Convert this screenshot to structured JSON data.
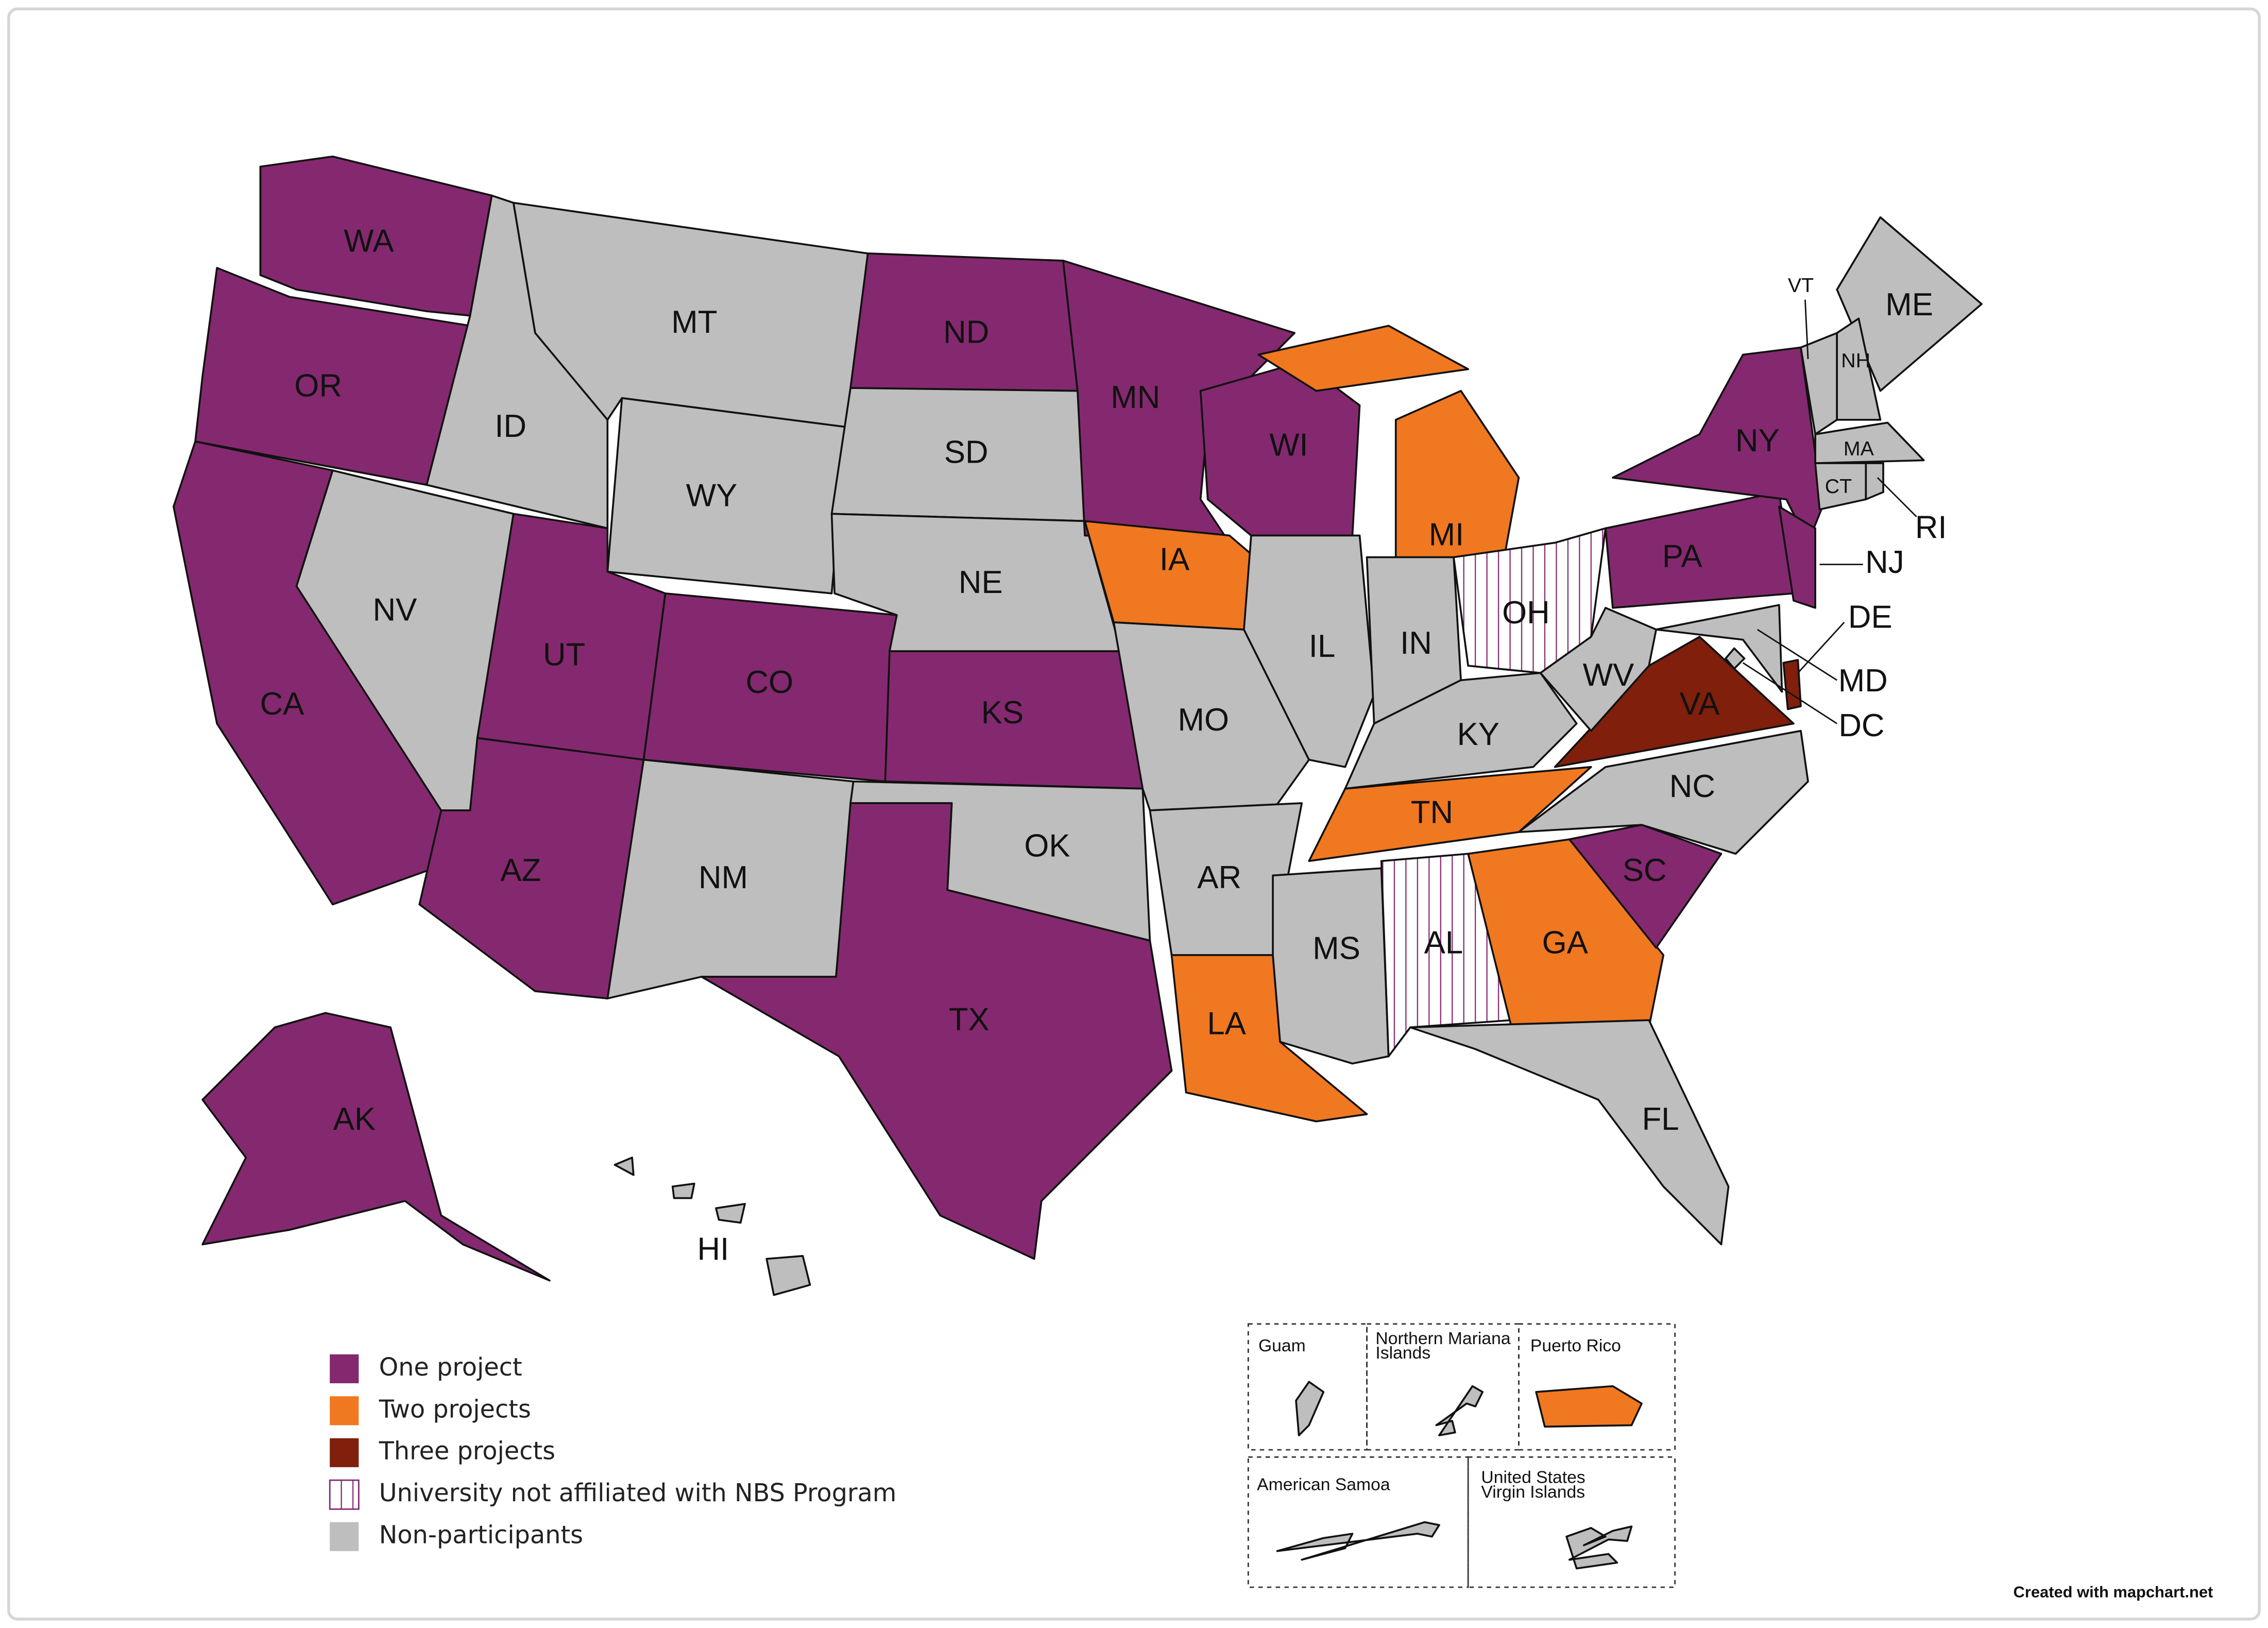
{
  "legend": [
    {
      "label": "One project",
      "color": "#84296f"
    },
    {
      "label": "Two projects",
      "color": "#f07820"
    },
    {
      "label": "Three projects",
      "color": "#7f1f0c"
    },
    {
      "label": "University not affiliated with NBS Program",
      "color": "#ffffff",
      "pattern": "stripes",
      "stripe_color": "#84296f"
    },
    {
      "label": "Non-participants",
      "color": "#bebebe"
    }
  ],
  "states": [
    {
      "code": "WA",
      "category": 0
    },
    {
      "code": "OR",
      "category": 0
    },
    {
      "code": "CA",
      "category": 0
    },
    {
      "code": "NV",
      "category": 4
    },
    {
      "code": "ID",
      "category": 4
    },
    {
      "code": "MT",
      "category": 4
    },
    {
      "code": "WY",
      "category": 4
    },
    {
      "code": "UT",
      "category": 0
    },
    {
      "code": "CO",
      "category": 0
    },
    {
      "code": "AZ",
      "category": 0
    },
    {
      "code": "NM",
      "category": 4
    },
    {
      "code": "ND",
      "category": 0
    },
    {
      "code": "SD",
      "category": 4
    },
    {
      "code": "NE",
      "category": 4
    },
    {
      "code": "KS",
      "category": 0
    },
    {
      "code": "OK",
      "category": 4
    },
    {
      "code": "TX",
      "category": 0
    },
    {
      "code": "MN",
      "category": 0
    },
    {
      "code": "IA",
      "category": 1
    },
    {
      "code": "MO",
      "category": 4
    },
    {
      "code": "AR",
      "category": 4
    },
    {
      "code": "LA",
      "category": 1
    },
    {
      "code": "WI",
      "category": 0
    },
    {
      "code": "IL",
      "category": 4
    },
    {
      "code": "MI",
      "category": 1
    },
    {
      "code": "IN",
      "category": 4
    },
    {
      "code": "OH",
      "category": 3
    },
    {
      "code": "KY",
      "category": 4
    },
    {
      "code": "TN",
      "category": 1
    },
    {
      "code": "MS",
      "category": 4
    },
    {
      "code": "AL",
      "category": 3
    },
    {
      "code": "GA",
      "category": 1
    },
    {
      "code": "FL",
      "category": 4
    },
    {
      "code": "SC",
      "category": 0
    },
    {
      "code": "NC",
      "category": 4
    },
    {
      "code": "VA",
      "category": 2
    },
    {
      "code": "WV",
      "category": 4
    },
    {
      "code": "PA",
      "category": 0
    },
    {
      "code": "NY",
      "category": 0
    },
    {
      "code": "NJ",
      "category": 0
    },
    {
      "code": "DE",
      "category": 2
    },
    {
      "code": "MD",
      "category": 4
    },
    {
      "code": "DC",
      "category": 4
    },
    {
      "code": "ME",
      "category": 4
    },
    {
      "code": "VT",
      "category": 4
    },
    {
      "code": "NH",
      "category": 4
    },
    {
      "code": "MA",
      "category": 4
    },
    {
      "code": "CT",
      "category": 4
    },
    {
      "code": "RI",
      "category": 4
    },
    {
      "code": "AK",
      "category": 0
    },
    {
      "code": "HI",
      "category": 4
    }
  ],
  "territories": [
    {
      "name": [
        "Guam"
      ],
      "category": 4
    },
    {
      "name": [
        "Northern Mariana",
        "Islands"
      ],
      "category": 4
    },
    {
      "name": [
        "Puerto Rico"
      ],
      "category": 1
    },
    {
      "name": [
        "American Samoa"
      ],
      "category": 4
    },
    {
      "name": [
        "United States",
        "Virgin Islands"
      ],
      "category": 4
    }
  ],
  "credit": "Created with mapchart.net"
}
